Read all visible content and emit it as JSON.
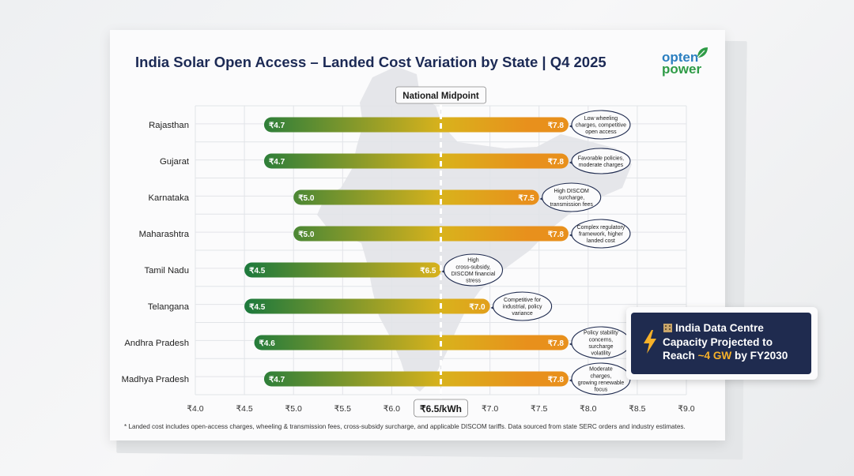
{
  "title": "India Solar Open Access – Landed Cost Variation by State | Q4 2025",
  "logo": {
    "line1": "opten",
    "line2": "power"
  },
  "midpoint_label": "National Midpoint",
  "midpoint_axis_label": "₹6.5/kWh",
  "footnote": "* Landed cost includes open-access charges, wheeling & transmission fees, cross-subsidy surcharge, and applicable DISCOM tariffs. Data sourced from state SERC orders and industry estimates.",
  "callout_card": {
    "line1": "India Data Centre",
    "line2": "Capacity Projected to",
    "line3_pre": "Reach ",
    "line3_highlight": "~4 GW",
    "line3_post": " by FY2030",
    "icon": "lightning-bolt-icon",
    "building_icon": "office-building-icon"
  },
  "colors": {
    "low": "#1f7a3c",
    "mid": "#d9b21c",
    "high": "#e8901c",
    "title": "#1c2a55"
  },
  "chart_data": {
    "type": "bar",
    "subtype": "range",
    "xlim": [
      4.0,
      9.0
    ],
    "xticks": [
      4.0,
      4.5,
      5.0,
      5.5,
      6.0,
      6.5,
      7.0,
      7.5,
      8.0,
      8.5,
      9.0
    ],
    "xtick_labels": [
      "₹4.0",
      "₹4.5",
      "₹5.0",
      "₹5.5",
      "₹6.0",
      "₹6.5/kWh",
      "₹7.0",
      "₹7.5",
      "₹8.0",
      "₹8.5",
      "₹9.0"
    ],
    "midpoint": 6.5,
    "grid": true,
    "states": [
      {
        "name": "Rajasthan",
        "low": 4.7,
        "high": 7.8,
        "low_label": "₹4.7",
        "high_label": "₹7.8",
        "note": [
          "Low wheeling",
          "charges, competitive",
          "open access"
        ]
      },
      {
        "name": "Gujarat",
        "low": 4.7,
        "high": 7.8,
        "low_label": "₹4.7",
        "high_label": "₹7.8",
        "note": [
          "Favorable policies,",
          "moderate charges"
        ]
      },
      {
        "name": "Karnataka",
        "low": 5.0,
        "high": 7.5,
        "low_label": "₹5.0",
        "high_label": "₹7.5",
        "note": [
          "High DISCOM",
          "surcharge,",
          "transmission fees"
        ]
      },
      {
        "name": "Maharashtra",
        "low": 5.0,
        "high": 7.8,
        "low_label": "₹5.0",
        "high_label": "₹7.8",
        "note": [
          "Complex regulatory",
          "framework, higher",
          "landed cost"
        ]
      },
      {
        "name": "Tamil Nadu",
        "low": 4.5,
        "high": 6.5,
        "low_label": "₹4.5",
        "high_label": "₹6.5",
        "note": [
          "High",
          "cross-subsidy,",
          "DISCOM financial",
          "stress"
        ]
      },
      {
        "name": "Telangana",
        "low": 4.5,
        "high": 7.0,
        "low_label": "₹4.5",
        "high_label": "₹7.0",
        "note": [
          "Competitive for",
          "industrial, policy",
          "variance"
        ]
      },
      {
        "name": "Andhra Pradesh",
        "low": 4.6,
        "high": 7.8,
        "low_label": "₹4.6",
        "high_label": "₹7.8",
        "note": [
          "Policy stability",
          "concerns,",
          "surcharge",
          "volatility"
        ]
      },
      {
        "name": "Madhya Pradesh",
        "low": 4.7,
        "high": 7.8,
        "low_label": "₹4.7",
        "high_label": "₹7.8",
        "note": [
          "Moderate",
          "charges,",
          "growing renewable",
          "focus"
        ]
      }
    ]
  }
}
